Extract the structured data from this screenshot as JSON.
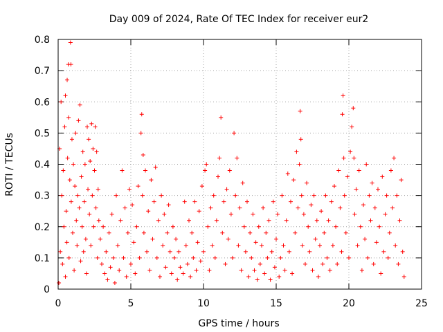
{
  "chart_data": {
    "type": "scatter",
    "title": "Day 009 of 2024, Rate Of TEC Index for receiver eur2",
    "xlabel": "GPS time / hours",
    "ylabel": "ROTI / TECUs",
    "xlim": [
      0,
      25
    ],
    "ylim": [
      0,
      0.8
    ],
    "xticks": [
      0,
      5,
      10,
      15,
      20,
      25
    ],
    "xtick_labels": [
      "0",
      "5",
      "10",
      "15",
      "20",
      "25"
    ],
    "yticks": [
      0,
      0.1,
      0.2,
      0.3,
      0.4,
      0.5,
      0.6,
      0.7,
      0.8
    ],
    "ytick_labels": [
      "0",
      "0.1",
      "0.2",
      "0.3",
      "0.4",
      "0.5",
      "0.6",
      "0.7",
      "0.8"
    ],
    "grid": true,
    "legend": "none",
    "marker": "plus",
    "color": "#ff0000",
    "series": [
      {
        "points": [
          [
            0.05,
            0.02
          ],
          [
            0.1,
            0.45
          ],
          [
            0.15,
            0.12
          ],
          [
            0.2,
            0.6
          ],
          [
            0.25,
            0.3
          ],
          [
            0.3,
            0.08
          ],
          [
            0.35,
            0.38
          ],
          [
            0.4,
            0.2
          ],
          [
            0.45,
            0.52
          ],
          [
            0.5,
            0.04
          ],
          [
            0.5,
            0.62
          ],
          [
            0.55,
            0.25
          ],
          [
            0.6,
            0.15
          ],
          [
            0.62,
            0.67
          ],
          [
            0.65,
            0.42
          ],
          [
            0.7,
            0.72
          ],
          [
            0.72,
            0.55
          ],
          [
            0.75,
            0.1
          ],
          [
            0.8,
            0.35
          ],
          [
            0.85,
            0.79
          ],
          [
            0.88,
            0.72
          ],
          [
            0.9,
            0.28
          ],
          [
            0.95,
            0.48
          ],
          [
            1.0,
            0.18
          ],
          [
            1.05,
            0.4
          ],
          [
            1.1,
            0.06
          ],
          [
            1.15,
            0.33
          ],
          [
            1.2,
            0.5
          ],
          [
            1.25,
            0.22
          ],
          [
            1.3,
            0.14
          ],
          [
            1.35,
            0.3
          ],
          [
            1.4,
            0.54
          ],
          [
            1.45,
            0.26
          ],
          [
            1.5,
            0.59
          ],
          [
            1.55,
            0.09
          ],
          [
            1.6,
            0.36
          ],
          [
            1.65,
            0.2
          ],
          [
            1.7,
            0.44
          ],
          [
            1.75,
            0.12
          ],
          [
            1.8,
            0.28
          ],
          [
            1.85,
            0.4
          ],
          [
            1.9,
            0.16
          ],
          [
            1.95,
            0.05
          ],
          [
            2.0,
            0.52
          ],
          [
            2.05,
            0.32
          ],
          [
            2.1,
            0.48
          ],
          [
            2.15,
            0.24
          ],
          [
            2.2,
            0.41
          ],
          [
            2.25,
            0.14
          ],
          [
            2.3,
            0.53
          ],
          [
            2.35,
            0.3
          ],
          [
            2.4,
            0.45
          ],
          [
            2.45,
            0.2
          ],
          [
            2.5,
            0.38
          ],
          [
            2.55,
            0.52
          ],
          [
            2.6,
            0.26
          ],
          [
            2.65,
            0.44
          ],
          [
            2.7,
            0.1
          ],
          [
            2.75,
            0.32
          ],
          [
            2.8,
            0.22
          ],
          [
            2.9,
            0.16
          ],
          [
            3.0,
            0.08
          ],
          [
            3.1,
            0.2
          ],
          [
            3.2,
            0.05
          ],
          [
            3.3,
            0.12
          ],
          [
            3.4,
            0.03
          ],
          [
            3.5,
            0.18
          ],
          [
            3.6,
            0.07
          ],
          [
            3.7,
            0.24
          ],
          [
            3.8,
            0.1
          ],
          [
            3.9,
            0.02
          ],
          [
            4.0,
            0.3
          ],
          [
            4.1,
            0.14
          ],
          [
            4.2,
            0.06
          ],
          [
            4.3,
            0.22
          ],
          [
            4.4,
            0.38
          ],
          [
            4.5,
            0.1
          ],
          [
            4.6,
            0.26
          ],
          [
            4.7,
            0.04
          ],
          [
            4.8,
            0.18
          ],
          [
            4.9,
            0.32
          ],
          [
            5.0,
            0.08
          ],
          [
            5.1,
            0.27
          ],
          [
            5.2,
            0.15
          ],
          [
            5.3,
            0.05
          ],
          [
            5.4,
            0.2
          ],
          [
            5.5,
            0.33
          ],
          [
            5.6,
            0.1
          ],
          [
            5.7,
            0.5
          ],
          [
            5.75,
            0.56
          ],
          [
            5.8,
            0.3
          ],
          [
            5.85,
            0.43
          ],
          [
            5.9,
            0.18
          ],
          [
            6.0,
            0.38
          ],
          [
            6.1,
            0.12
          ],
          [
            6.2,
            0.25
          ],
          [
            6.3,
            0.06
          ],
          [
            6.4,
            0.35
          ],
          [
            6.5,
            0.16
          ],
          [
            6.6,
            0.28
          ],
          [
            6.7,
            0.39
          ],
          [
            6.8,
            0.1
          ],
          [
            6.9,
            0.22
          ],
          [
            7.0,
            0.04
          ],
          [
            7.1,
            0.3
          ],
          [
            7.2,
            0.14
          ],
          [
            7.3,
            0.24
          ],
          [
            7.4,
            0.07
          ],
          [
            7.5,
            0.18
          ],
          [
            7.6,
            0.27
          ],
          [
            7.7,
            0.12
          ],
          [
            7.8,
            0.05
          ],
          [
            7.9,
            0.2
          ],
          [
            8.0,
            0.1
          ],
          [
            8.1,
            0.16
          ],
          [
            8.2,
            0.03
          ],
          [
            8.3,
            0.12
          ],
          [
            8.4,
            0.07
          ],
          [
            8.6,
            0.05
          ],
          [
            8.7,
            0.28
          ],
          [
            8.8,
            0.14
          ],
          [
            8.9,
            0.08
          ],
          [
            9.0,
            0.22
          ],
          [
            9.1,
            0.04
          ],
          [
            9.2,
            0.18
          ],
          [
            9.3,
            0.1
          ],
          [
            9.4,
            0.28
          ],
          [
            9.5,
            0.06
          ],
          [
            9.6,
            0.15
          ],
          [
            9.7,
            0.25
          ],
          [
            9.8,
            0.09
          ],
          [
            9.9,
            0.33
          ],
          [
            10.0,
            0.12
          ],
          [
            10.1,
            0.38
          ],
          [
            10.2,
            0.4
          ],
          [
            10.3,
            0.2
          ],
          [
            10.4,
            0.06
          ],
          [
            10.5,
            0.26
          ],
          [
            10.6,
            0.14
          ],
          [
            10.7,
            0.3
          ],
          [
            10.8,
            0.1
          ],
          [
            10.9,
            0.22
          ],
          [
            11.0,
            0.36
          ],
          [
            11.1,
            0.42
          ],
          [
            11.2,
            0.55
          ],
          [
            11.3,
            0.18
          ],
          [
            11.4,
            0.28
          ],
          [
            11.5,
            0.08
          ],
          [
            11.6,
            0.32
          ],
          [
            11.7,
            0.16
          ],
          [
            11.8,
            0.38
          ],
          [
            11.9,
            0.24
          ],
          [
            12.0,
            0.1
          ],
          [
            12.1,
            0.5
          ],
          [
            12.2,
            0.3
          ],
          [
            12.3,
            0.42
          ],
          [
            12.4,
            0.14
          ],
          [
            12.5,
            0.26
          ],
          [
            12.6,
            0.06
          ],
          [
            12.7,
            0.34
          ],
          [
            12.8,
            0.2
          ],
          [
            12.9,
            0.12
          ],
          [
            13.0,
            0.28
          ],
          [
            13.1,
            0.04
          ],
          [
            13.2,
            0.18
          ],
          [
            13.3,
            0.1
          ],
          [
            13.4,
            0.24
          ],
          [
            13.5,
            0.06
          ],
          [
            13.6,
            0.15
          ],
          [
            13.7,
            0.03
          ],
          [
            13.8,
            0.2
          ],
          [
            13.9,
            0.08
          ],
          [
            14.0,
            0.14
          ],
          [
            14.1,
            0.26
          ],
          [
            14.2,
            0.05
          ],
          [
            14.3,
            0.18
          ],
          [
            14.4,
            0.1
          ],
          [
            14.5,
            0.22
          ],
          [
            14.6,
            0.03
          ],
          [
            14.7,
            0.12
          ],
          [
            14.8,
            0.28
          ],
          [
            14.9,
            0.07
          ],
          [
            15.0,
            0.16
          ],
          [
            15.1,
            0.24
          ],
          [
            15.2,
            0.04
          ],
          [
            15.3,
            0.1
          ],
          [
            15.4,
            0.3
          ],
          [
            15.5,
            0.14
          ],
          [
            15.6,
            0.06
          ],
          [
            15.7,
            0.22
          ],
          [
            15.8,
            0.37
          ],
          [
            15.9,
            0.12
          ],
          [
            16.0,
            0.28
          ],
          [
            16.1,
            0.05
          ],
          [
            16.2,
            0.35
          ],
          [
            16.3,
            0.18
          ],
          [
            16.4,
            0.44
          ],
          [
            16.5,
            0.26
          ],
          [
            16.6,
            0.4
          ],
          [
            16.65,
            0.57
          ],
          [
            16.7,
            0.48
          ],
          [
            16.75,
            0.3
          ],
          [
            16.8,
            0.14
          ],
          [
            16.9,
            0.24
          ],
          [
            17.0,
            0.08
          ],
          [
            17.1,
            0.34
          ],
          [
            17.2,
            0.2
          ],
          [
            17.3,
            0.12
          ],
          [
            17.4,
            0.27
          ],
          [
            17.5,
            0.06
          ],
          [
            17.6,
            0.3
          ],
          [
            17.7,
            0.16
          ],
          [
            17.8,
            0.22
          ],
          [
            17.9,
            0.04
          ],
          [
            18.0,
            0.14
          ],
          [
            18.1,
            0.25
          ],
          [
            18.2,
            0.08
          ],
          [
            18.3,
            0.18
          ],
          [
            18.4,
            0.3
          ],
          [
            18.5,
            0.1
          ],
          [
            18.6,
            0.22
          ],
          [
            18.7,
            0.06
          ],
          [
            18.8,
            0.28
          ],
          [
            18.9,
            0.14
          ],
          [
            19.0,
            0.33
          ],
          [
            19.1,
            0.2
          ],
          [
            19.2,
            0.08
          ],
          [
            19.3,
            0.38
          ],
          [
            19.4,
            0.26
          ],
          [
            19.5,
            0.12
          ],
          [
            19.55,
            0.56
          ],
          [
            19.6,
            0.62
          ],
          [
            19.65,
            0.42
          ],
          [
            19.7,
            0.3
          ],
          [
            19.8,
            0.18
          ],
          [
            19.9,
            0.36
          ],
          [
            20.0,
            0.1
          ],
          [
            20.1,
            0.44
          ],
          [
            20.2,
            0.52
          ],
          [
            20.3,
            0.58
          ],
          [
            20.35,
            0.42
          ],
          [
            20.4,
            0.24
          ],
          [
            20.5,
            0.32
          ],
          [
            20.6,
            0.14
          ],
          [
            20.7,
            0.38
          ],
          [
            20.8,
            0.2
          ],
          [
            20.9,
            0.06
          ],
          [
            21.0,
            0.27
          ],
          [
            21.1,
            0.16
          ],
          [
            21.2,
            0.4
          ],
          [
            21.3,
            0.1
          ],
          [
            21.4,
            0.3
          ],
          [
            21.5,
            0.22
          ],
          [
            21.6,
            0.34
          ],
          [
            21.7,
            0.08
          ],
          [
            21.8,
            0.26
          ],
          [
            21.9,
            0.15
          ],
          [
            22.0,
            0.32
          ],
          [
            22.1,
            0.2
          ],
          [
            22.2,
            0.05
          ],
          [
            22.3,
            0.36
          ],
          [
            22.4,
            0.12
          ],
          [
            22.5,
            0.24
          ],
          [
            22.6,
            0.3
          ],
          [
            22.7,
            0.1
          ],
          [
            22.8,
            0.18
          ],
          [
            22.9,
            0.38
          ],
          [
            23.0,
            0.26
          ],
          [
            23.1,
            0.42
          ],
          [
            23.2,
            0.14
          ],
          [
            23.3,
            0.3
          ],
          [
            23.4,
            0.08
          ],
          [
            23.5,
            0.22
          ],
          [
            23.6,
            0.35
          ],
          [
            23.7,
            0.12
          ],
          [
            23.8,
            0.04
          ]
        ]
      }
    ]
  }
}
